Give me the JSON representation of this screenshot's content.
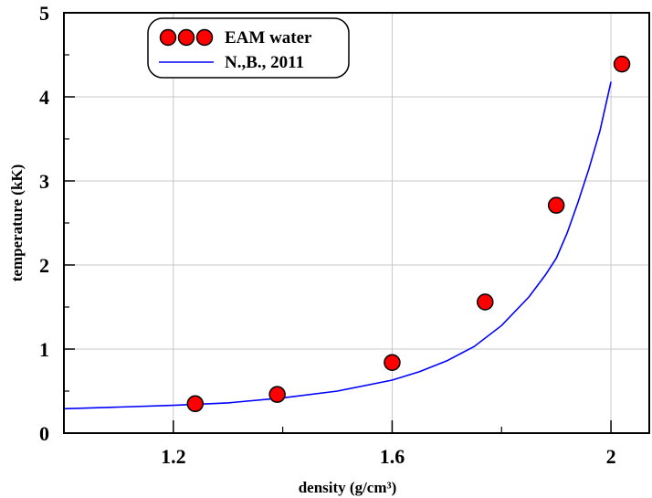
{
  "chart_data": {
    "type": "scatter",
    "xlabel": "density (g/cm³)",
    "ylabel": "temperature (kK)",
    "xlim": [
      1.0,
      2.07
    ],
    "ylim": [
      0,
      5
    ],
    "x_ticks": [
      "1.2",
      "1.6",
      "2"
    ],
    "x_tick_values": [
      1.2,
      1.6,
      2.0
    ],
    "x_minor_tick_values": [
      1.4,
      1.8
    ],
    "y_ticks": [
      "0",
      "1",
      "2",
      "3",
      "4",
      "5"
    ],
    "y_tick_values": [
      0,
      1,
      2,
      3,
      4,
      5
    ],
    "grid": true,
    "legend_position": "top-left",
    "series": [
      {
        "name": "EAM water",
        "kind": "markers",
        "color": "#ff0000",
        "x": [
          1.24,
          1.39,
          1.6,
          1.77,
          1.9,
          2.02
        ],
        "y": [
          0.35,
          0.46,
          0.84,
          1.56,
          2.71,
          4.39
        ]
      },
      {
        "name": "N.,B., 2011",
        "kind": "line",
        "color": "#0000ff",
        "x": [
          1.0,
          1.1,
          1.2,
          1.3,
          1.4,
          1.5,
          1.6,
          1.65,
          1.7,
          1.75,
          1.8,
          1.85,
          1.88,
          1.9,
          1.92,
          1.94,
          1.96,
          1.98,
          2.0
        ],
        "y": [
          0.29,
          0.31,
          0.33,
          0.36,
          0.42,
          0.5,
          0.63,
          0.73,
          0.86,
          1.03,
          1.28,
          1.62,
          1.88,
          2.08,
          2.38,
          2.75,
          3.15,
          3.6,
          4.18
        ]
      }
    ]
  }
}
